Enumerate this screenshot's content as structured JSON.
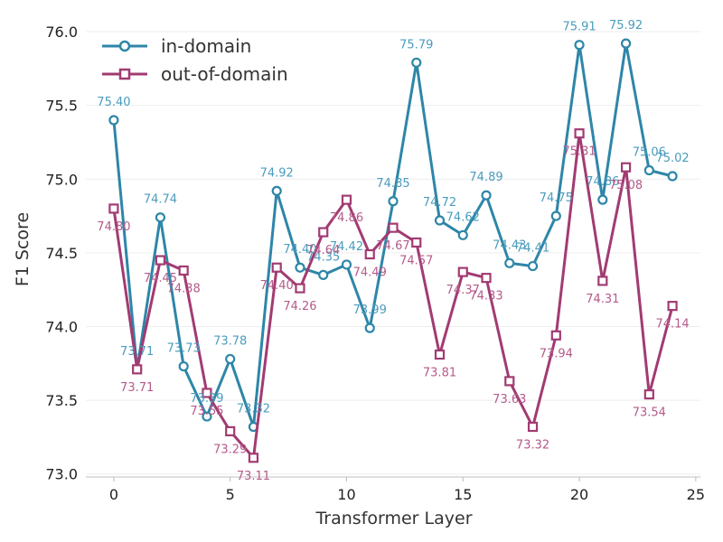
{
  "chart_data": {
    "type": "line",
    "title": "",
    "xlabel": "Transformer Layer",
    "ylabel": "F1 Score",
    "xlim": [
      -1.2,
      25.2
    ],
    "ylim": [
      72.98,
      76.08
    ],
    "xticks": [
      0,
      5,
      10,
      15,
      20,
      25
    ],
    "yticks": [
      73.0,
      73.5,
      74.0,
      74.5,
      75.0,
      75.5,
      76.0
    ],
    "xtick_labels": [
      "0",
      "5",
      "10",
      "15",
      "20",
      "25"
    ],
    "ytick_labels": [
      "73.0",
      "73.5",
      "74.0",
      "74.5",
      "75.0",
      "75.5",
      "76.0"
    ],
    "grid": "horizontal",
    "legend_position": "top-left",
    "x": [
      0,
      1,
      2,
      3,
      4,
      5,
      6,
      7,
      8,
      9,
      10,
      11,
      12,
      13,
      14,
      15,
      16,
      17,
      18,
      19,
      20,
      21,
      22,
      23,
      24
    ],
    "series": [
      {
        "name": "in-domain",
        "color": "#2e86a8",
        "label_color": "#4a9cbd",
        "marker": "circle",
        "values": [
          75.4,
          73.71,
          74.74,
          73.73,
          73.39,
          73.78,
          73.32,
          74.92,
          74.4,
          74.35,
          74.42,
          73.99,
          74.85,
          75.79,
          74.72,
          74.62,
          74.89,
          74.43,
          74.41,
          74.75,
          75.91,
          74.86,
          75.92,
          75.06,
          75.02
        ],
        "labels": [
          "75.40",
          "73.71",
          "74.74",
          "73.73",
          "73.39",
          "73.78",
          "73.32",
          "74.92",
          "74.40",
          "74.35",
          "74.42",
          "73.99",
          "74.85",
          "75.79",
          "74.72",
          "74.62",
          "74.89",
          "74.43",
          "74.41",
          "74.75",
          "75.91",
          "74.86",
          "75.92",
          "75.06",
          "75.02"
        ]
      },
      {
        "name": "out-of-domain",
        "color": "#a23b72",
        "label_color": "#b55a8a",
        "marker": "square",
        "values": [
          74.8,
          73.71,
          74.45,
          74.38,
          73.55,
          73.29,
          73.11,
          74.4,
          74.26,
          74.64,
          74.86,
          74.49,
          74.67,
          74.57,
          73.81,
          74.37,
          74.33,
          73.63,
          73.32,
          73.94,
          75.31,
          74.31,
          75.08,
          73.54,
          74.14
        ],
        "labels": [
          "74.80",
          "73.71",
          "74.45",
          "74.38",
          "73.55",
          "73.29",
          "73.11",
          "74.40",
          "74.26",
          "74.64",
          "74.86",
          "74.49",
          "74.67",
          "74.57",
          "73.81",
          "74.37",
          "74.33",
          "73.63",
          "73.32",
          "73.94",
          "75.31",
          "74.31",
          "75.08",
          "73.54",
          "74.14"
        ]
      }
    ]
  }
}
